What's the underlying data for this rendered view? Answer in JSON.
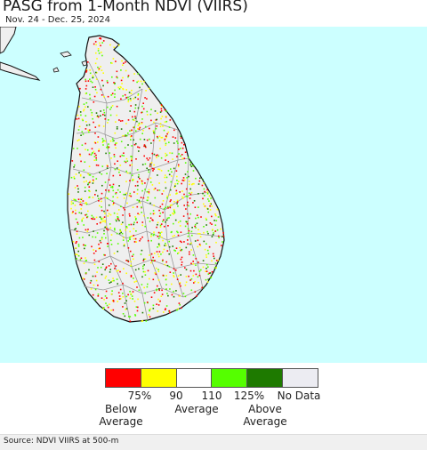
{
  "title": "PASG from 1-Month NDVI (VIIRS)",
  "subtitle": "Nov. 24 - Dec. 25, 2024",
  "map": {
    "water_color": "#ccffff",
    "land_color": "#efefef",
    "outline_color": "#111111",
    "district_line_color": "#9a9a9a",
    "speckle_colors": [
      "#ff0000",
      "#ffff00",
      "#55ff00",
      "#1e7a00"
    ]
  },
  "legend": {
    "swatches": [
      {
        "color": "#ff0000",
        "name": "below-75"
      },
      {
        "color": "#ffff00",
        "name": "75-90"
      },
      {
        "color": "#ffffff",
        "name": "90-110"
      },
      {
        "color": "#55ff00",
        "name": "110-125"
      },
      {
        "color": "#1e7a00",
        "name": "above-125"
      },
      {
        "color": "#ececf2",
        "name": "no-data"
      }
    ],
    "ticks": [
      "75%",
      "90",
      "110",
      "125%",
      "No Data"
    ],
    "categories": {
      "below": "Below\nAverage",
      "average": "Average",
      "above": "Above\nAverage"
    },
    "below_line1": "Below",
    "below_line2": "Average",
    "average": "Average",
    "above_line1": "Above",
    "above_line2": "Average"
  },
  "footer": {
    "source": "Source: NDVI VIIRS at 500-m"
  }
}
